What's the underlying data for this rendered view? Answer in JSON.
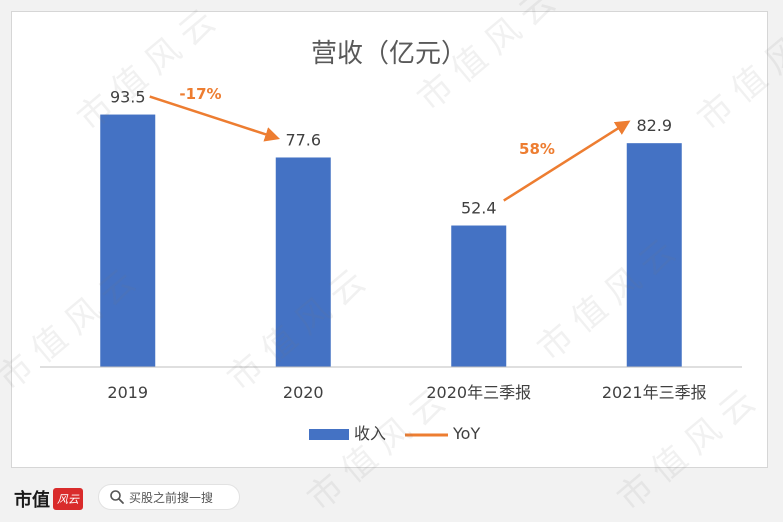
{
  "chart_data": {
    "type": "bar",
    "title": "营收（亿元）",
    "categories": [
      "2019",
      "2020",
      "2020年三季报",
      "2021年三季报"
    ],
    "series": [
      {
        "name": "收入",
        "values": [
          93.5,
          77.6,
          52.4,
          82.9
        ],
        "color": "#4472c4"
      }
    ],
    "overlay_series": {
      "name": "YoY",
      "color": "#ed7d31",
      "arrows": [
        {
          "from_category": "2019",
          "to_category": "2020",
          "label": "-17%"
        },
        {
          "from_category": "2020年三季报",
          "to_category": "2021年三季报",
          "label": "58%"
        }
      ]
    },
    "ylim": [
      0,
      100
    ],
    "grid": false,
    "legend": "bottom"
  },
  "watermark_text": "市值风云",
  "footer": {
    "brand": "市值",
    "brand_badge": "风云",
    "search_placeholder": "买股之前搜一搜"
  }
}
